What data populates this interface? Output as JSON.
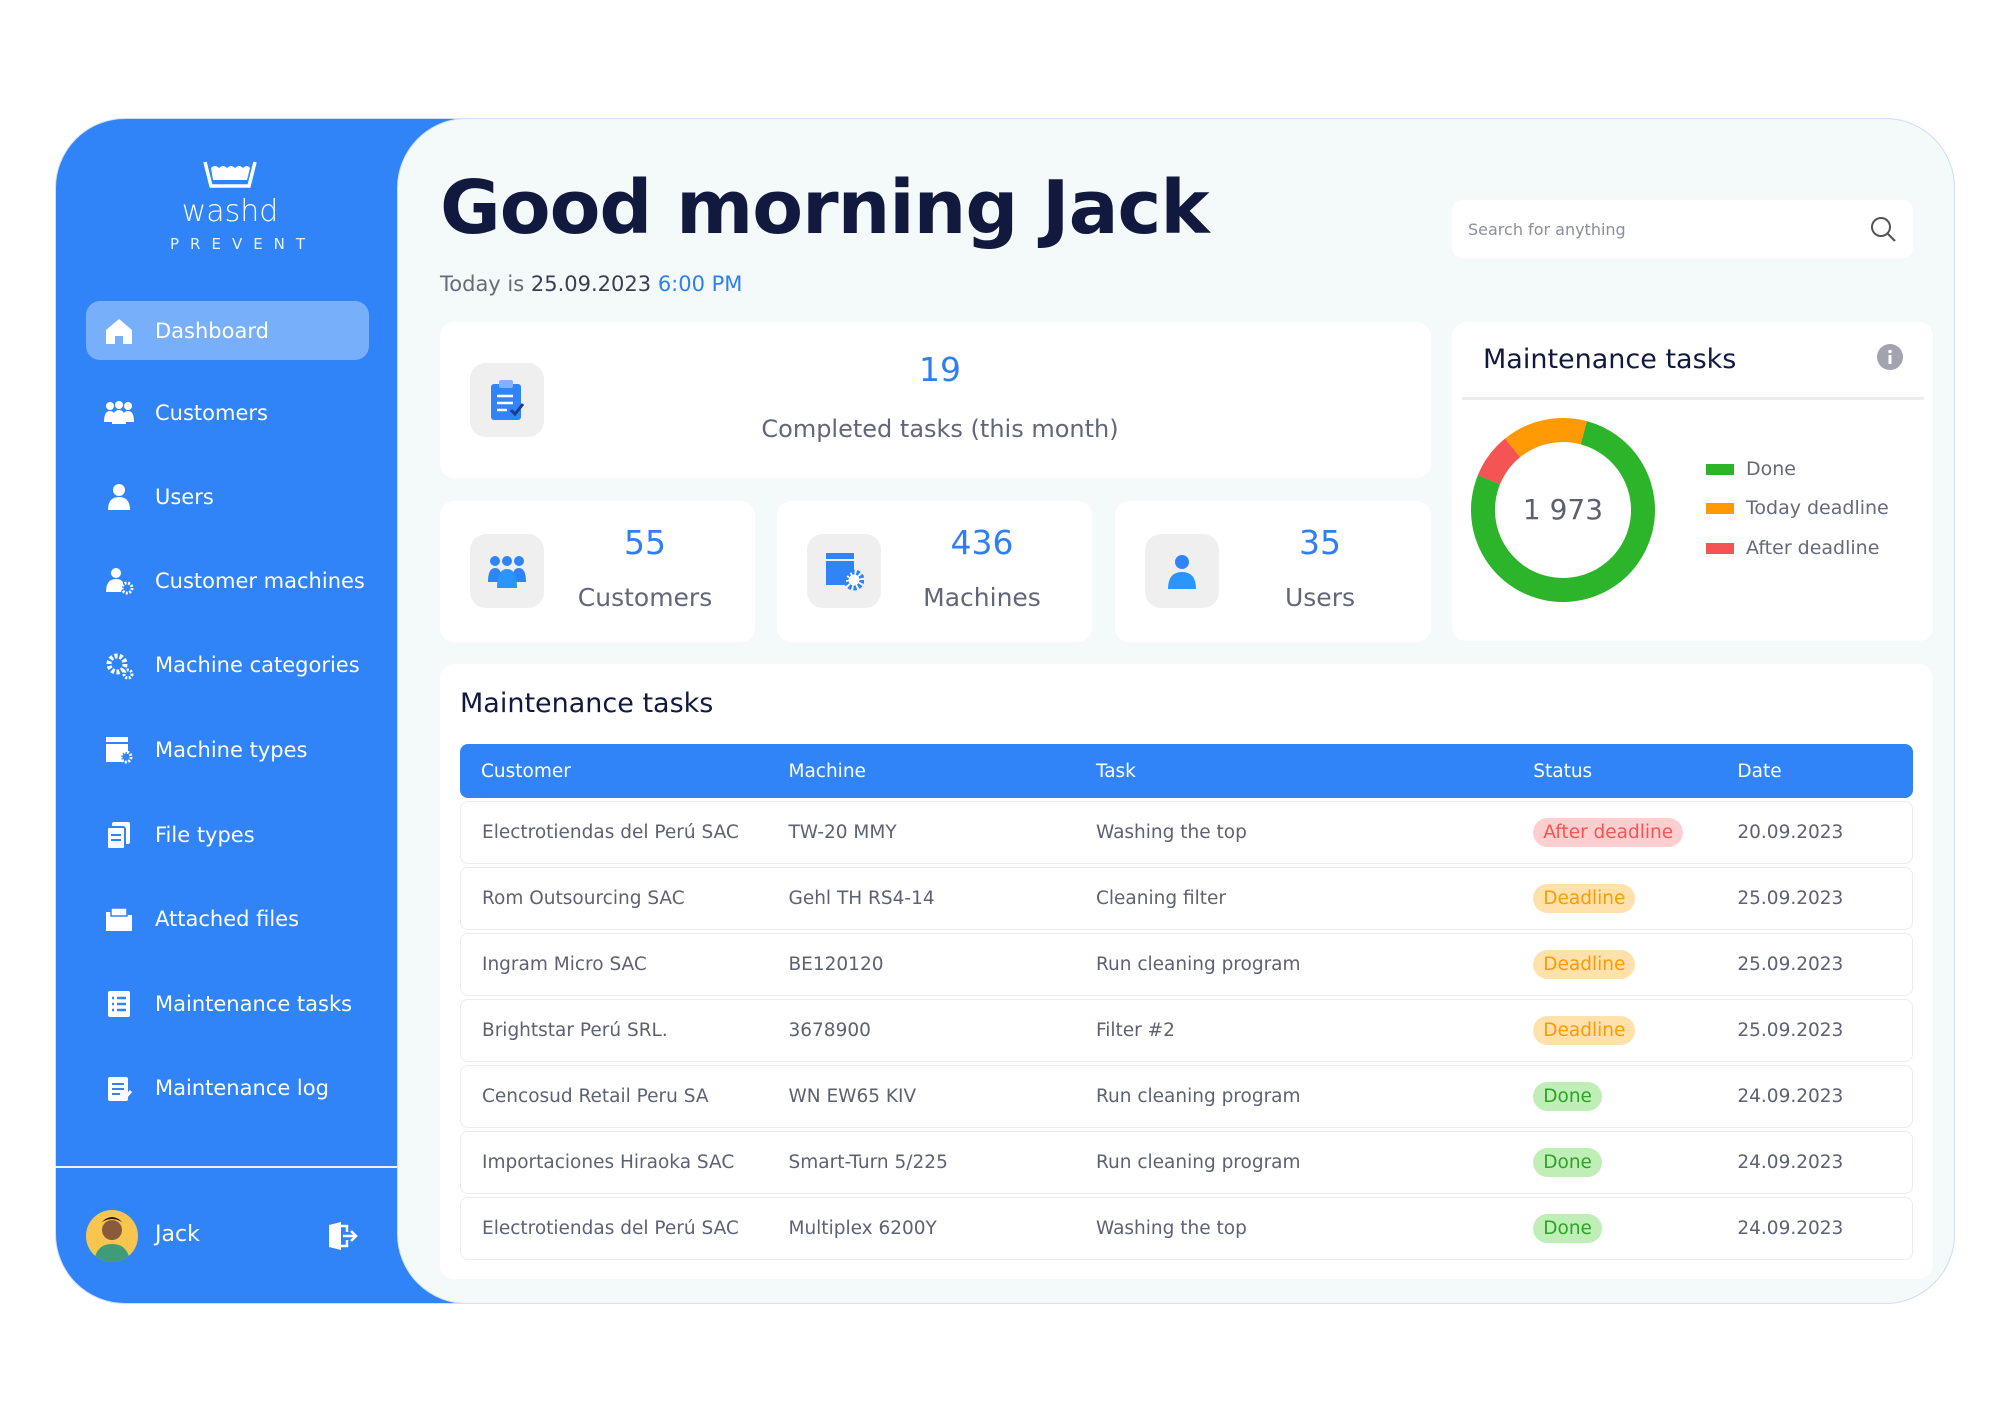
{
  "app": {
    "brand": "washd",
    "sub": "PREVENT"
  },
  "sidebar": {
    "items": [
      {
        "label": "Dashboard",
        "icon": "home-icon",
        "active": true
      },
      {
        "label": "Customers",
        "icon": "users-group-icon"
      },
      {
        "label": "Users",
        "icon": "user-icon"
      },
      {
        "label": "Customer machines",
        "icon": "user-gear-icon"
      },
      {
        "label": "Machine categories",
        "icon": "gears-icon"
      },
      {
        "label": "Machine types",
        "icon": "window-gear-icon"
      },
      {
        "label": "File types",
        "icon": "files-icon"
      },
      {
        "label": "Attached files",
        "icon": "folder-icon"
      },
      {
        "label": "Maintenance tasks",
        "icon": "list-icon"
      },
      {
        "label": "Maintenance log",
        "icon": "clipboard-icon"
      }
    ],
    "user": {
      "name": "Jack"
    }
  },
  "header": {
    "greeting": "Good morning Jack",
    "date_prefix": "Today is ",
    "date": "25.09.2023",
    "time": "6:00 PM",
    "search_placeholder": "Search for anything"
  },
  "stats": {
    "completed": {
      "value": "19",
      "label": "Completed tasks (this month)"
    },
    "customers": {
      "value": "55",
      "label": "Customers"
    },
    "machines": {
      "value": "436",
      "label": "Machines"
    },
    "users": {
      "value": "35",
      "label": "Users"
    }
  },
  "donut": {
    "title": "Maintenance tasks",
    "total": "1 973",
    "legend": [
      "Done",
      "Today deadline",
      "After deadline"
    ],
    "colors": {
      "done": "#2cb52a",
      "today": "#ff9a05",
      "after": "#f55454"
    },
    "fractions": {
      "done": 0.77,
      "today": 0.15,
      "after": 0.08
    }
  },
  "table": {
    "title": "Maintenance tasks",
    "columns": [
      "Customer",
      "Machine",
      "Task",
      "Status",
      "Date"
    ],
    "rows": [
      [
        "Electrotiendas del Perú SAC",
        "TW-20 MMY",
        "Washing the top",
        "After deadline",
        "20.09.2023"
      ],
      [
        "Rom Outsourcing SAC",
        "Gehl TH RS4-14",
        "Cleaning filter",
        "Deadline",
        "25.09.2023"
      ],
      [
        "Ingram Micro SAC",
        "BE120120",
        "Run cleaning program",
        "Deadline",
        "25.09.2023"
      ],
      [
        "Brightstar Perú SRL.",
        "3678900",
        "Filter #2",
        "Deadline",
        "25.09.2023"
      ],
      [
        "Cencosud Retail Peru SA",
        "WN EW65 KIV",
        "Run cleaning program",
        "Done",
        "24.09.2023"
      ],
      [
        "Importaciones Hiraoka SAC",
        "Smart-Turn 5/225",
        "Run cleaning program",
        "Done",
        "24.09.2023"
      ],
      [
        "Electrotiendas del Perú SAC",
        "Multiplex 6200Y",
        "Washing the top",
        "Done",
        "24.09.2023"
      ]
    ]
  }
}
